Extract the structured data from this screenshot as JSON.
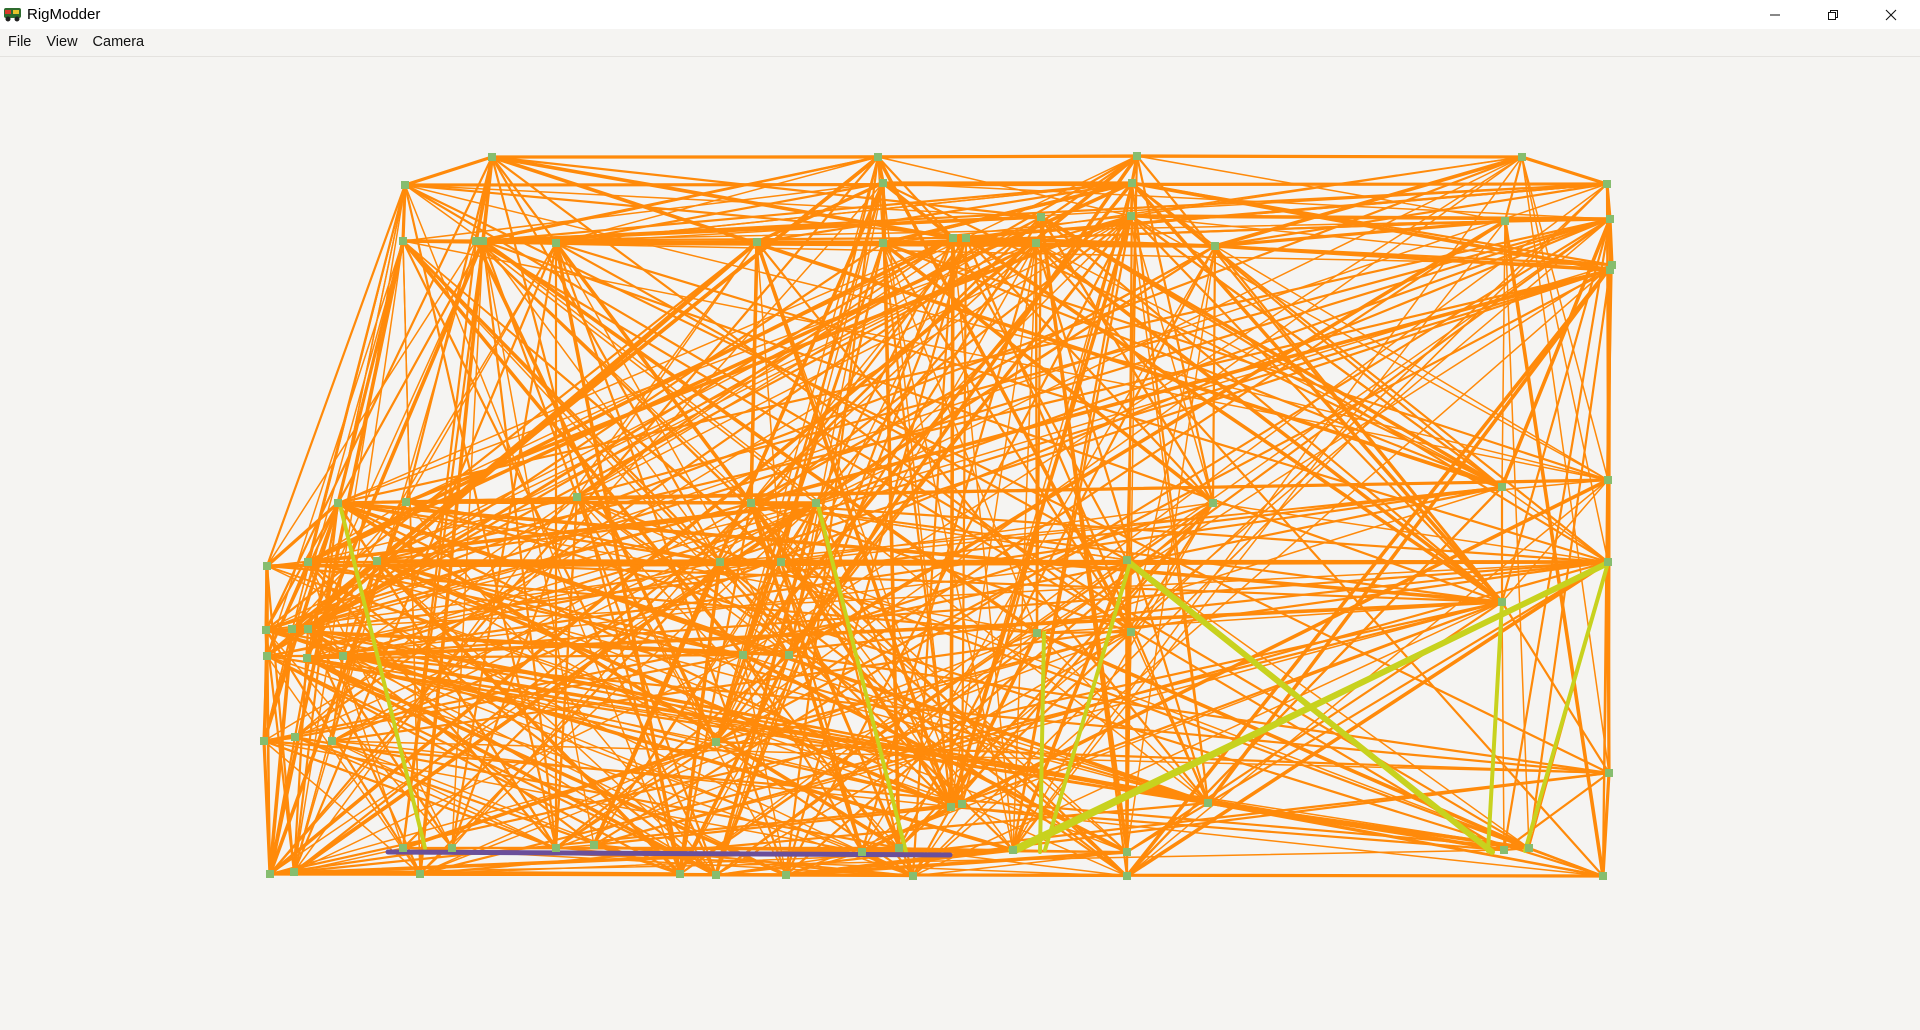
{
  "window": {
    "title": "RigModder",
    "controls": {
      "minimize_icon": "minimize-icon",
      "maximize_icon": "restore-icon",
      "close_icon": "close-icon"
    }
  },
  "menubar": {
    "items": [
      {
        "label": "File"
      },
      {
        "label": "View"
      },
      {
        "label": "Camera"
      }
    ]
  },
  "viewport": {
    "colors": {
      "background": "#f5f4f2",
      "beam": "#ff8a0a",
      "selected_beam": "#c8d21e",
      "hydro_beam": "#6b4f9a",
      "node": "#86bd6f"
    }
  }
}
